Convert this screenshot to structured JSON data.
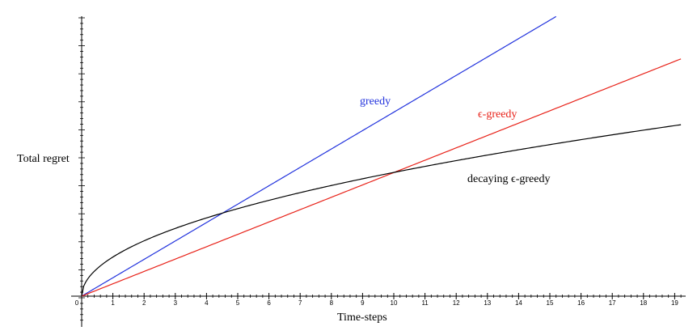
{
  "chart_data": {
    "type": "line",
    "title": "",
    "xlabel": "Time-steps",
    "ylabel": "Total regret",
    "xlim": [
      0,
      19.2
    ],
    "ylim": [
      0,
      10
    ],
    "x_ticks": [
      0,
      1,
      2,
      3,
      4,
      5,
      6,
      7,
      8,
      9,
      10,
      11,
      12,
      13,
      14,
      15,
      16,
      17,
      18,
      19
    ],
    "grid": false,
    "series": [
      {
        "name": "greedy",
        "label": "greedy",
        "color": "#2233dd",
        "kind": "linear",
        "slope": 0.6571,
        "x_range": [
          0,
          15.2
        ]
      },
      {
        "name": "e-greedy",
        "label": "ϵ-greedy",
        "color": "#e8231a",
        "kind": "linear",
        "slope": 0.4414,
        "x_range": [
          0,
          19.2
        ]
      },
      {
        "name": "decaying-e-greedy",
        "label": "decaying ϵ-greedy",
        "color": "#000000",
        "kind": "sqrt",
        "coef": 1.3975,
        "x_range": [
          0,
          19.2
        ]
      }
    ]
  }
}
